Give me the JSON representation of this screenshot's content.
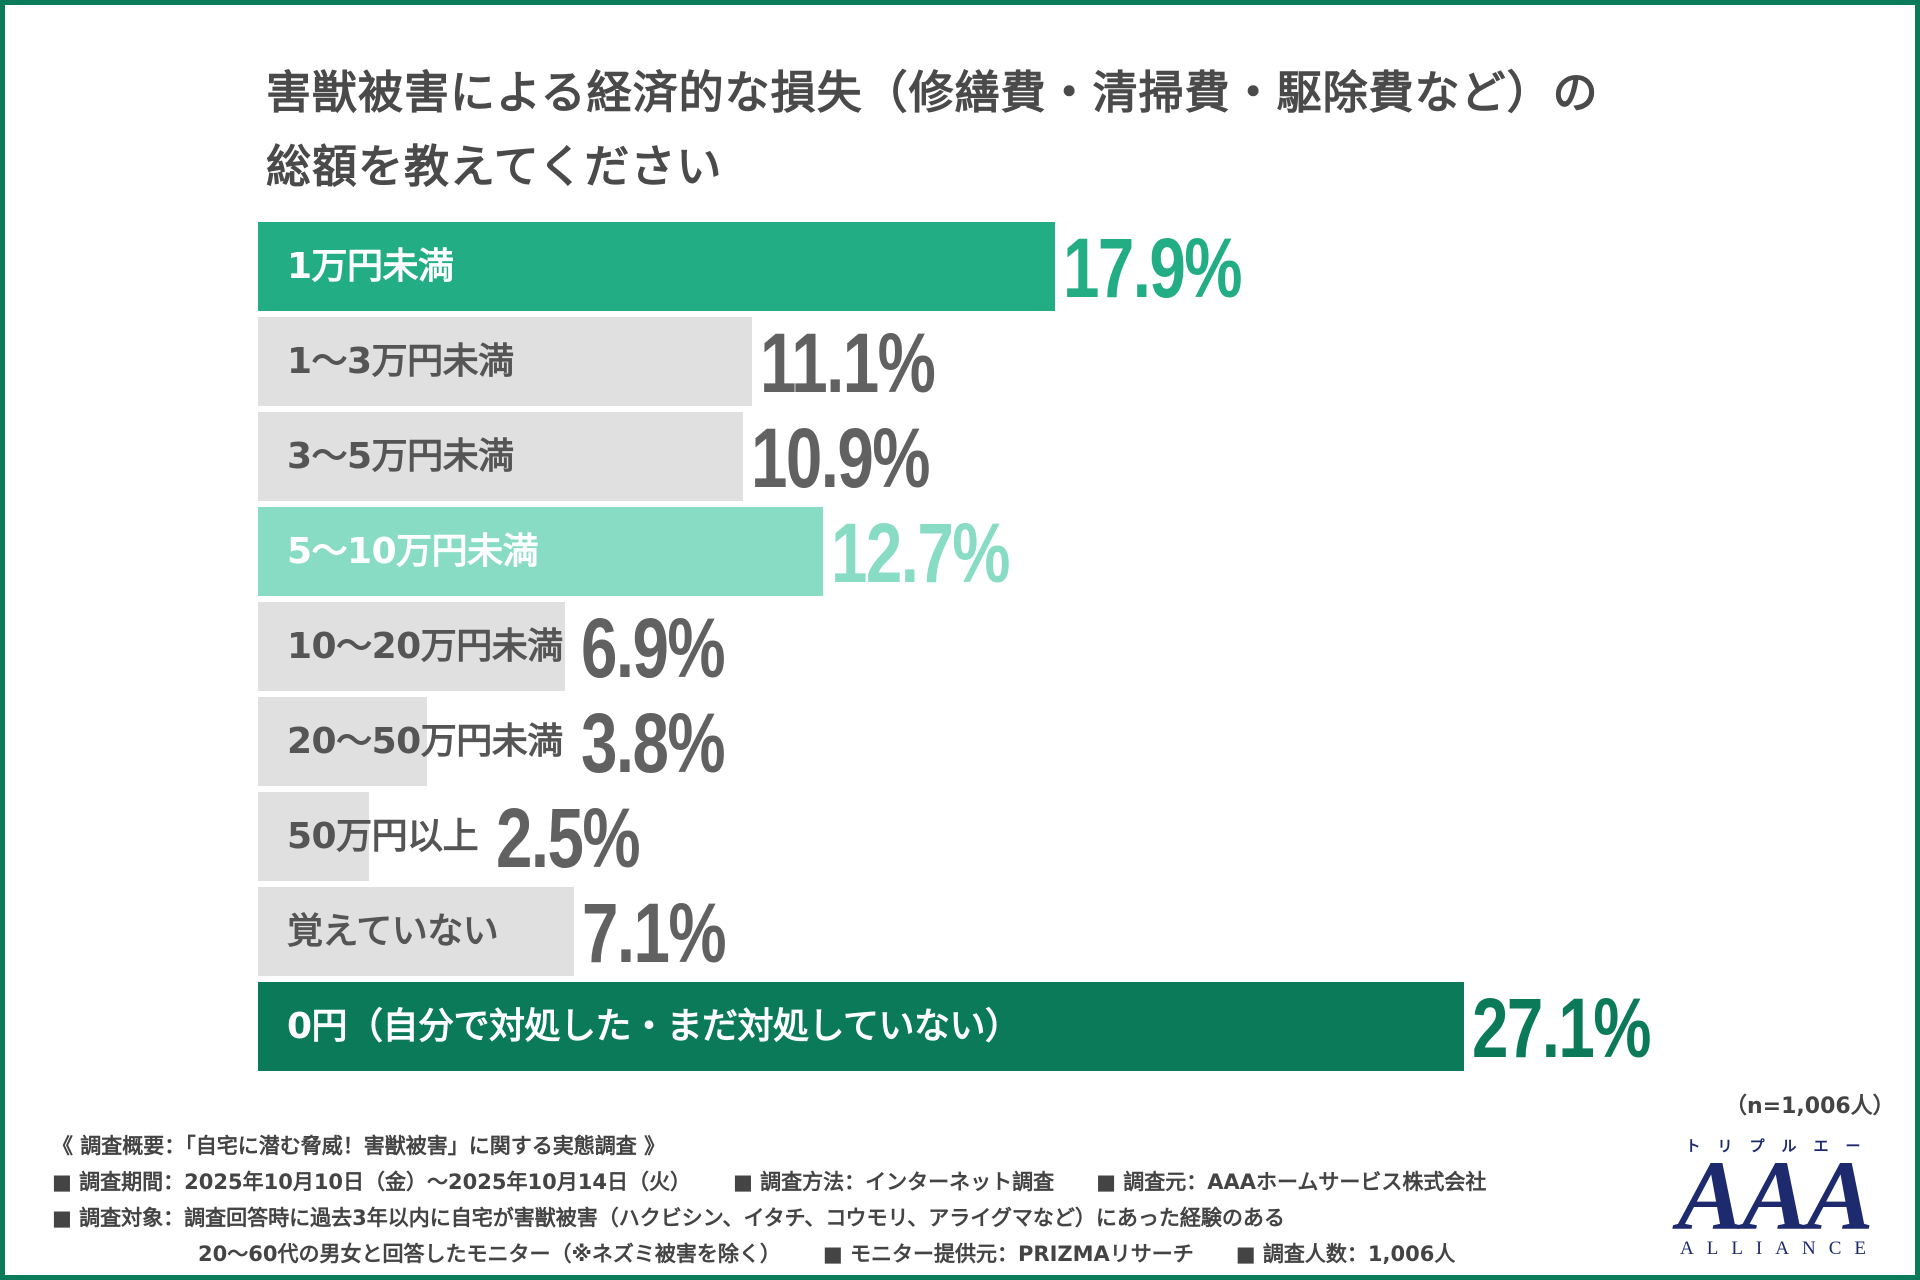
{
  "title_lines": [
    "害獣被害による経済的な損失（修繕費・清掃費・駆除費など）の",
    "総額を教えてください"
  ],
  "chart_data": {
    "type": "bar",
    "orientation": "horizontal",
    "title": "害獣被害による経済的な損失（修繕費・清掃費・駆除費など）の総額を教えてください",
    "categories": [
      "1万円未満",
      "1〜3万円未満",
      "3〜5万円未満",
      "5〜10万円未満",
      "10〜20万円未満",
      "20〜50万円未満",
      "50万円以上",
      "覚えていない",
      "0円（自分で対処した・まだ対処していない）"
    ],
    "values": [
      17.9,
      11.1,
      10.9,
      12.7,
      6.9,
      3.8,
      2.5,
      7.1,
      27.1
    ],
    "value_labels": [
      "17.9%",
      "11.1%",
      "10.9%",
      "12.7%",
      "6.9%",
      "3.8%",
      "2.5%",
      "7.1%",
      "27.1%"
    ],
    "unit": "%",
    "bar_colors": [
      "#22ad84",
      "#e0e0e0",
      "#e0e0e0",
      "#88dcc3",
      "#e0e0e0",
      "#e0e0e0",
      "#e0e0e0",
      "#e0e0e0",
      "#0a7a58"
    ],
    "label_colors": [
      "#ffffff",
      "#555555",
      "#555555",
      "#ffffff",
      "#555555",
      "#555555",
      "#555555",
      "#555555",
      "#ffffff"
    ],
    "value_colors": [
      "#22ad84",
      "#616161",
      "#616161",
      "#88dcc3",
      "#616161",
      "#616161",
      "#616161",
      "#616161",
      "#0a7a58"
    ],
    "grid": false,
    "legend": "none"
  },
  "sample_size": "（n=1,006人）",
  "footer": {
    "heading": "《 調査概要：「自宅に潜む脅威！害獣被害」に関する実態調査 》",
    "period": "■ 調査期間：2025年10月10日（金）〜2025年10月14日（火）",
    "method": "■ 調査方法：インターネット調査",
    "source": "■ 調査元：AAAホームサービス株式会社",
    "target": "■ 調査対象：調査回答時に過去3年以内に自宅が害獣被害（ハクビシン、イタチ、コウモリ、アライグマなど）にあった経験のある",
    "target2": "20〜60代の男女と回答したモニター（※ネズミ被害を除く）",
    "provider": "■ モニター提供元：PRIZMAリサーチ",
    "count": "■ 調査人数：1,006人"
  },
  "logo": {
    "kana": "トリプルエー",
    "main": "AAA",
    "sub": "ALLIANCE",
    "color": "#1e2a6e"
  },
  "frame_color": "#0a7a58"
}
